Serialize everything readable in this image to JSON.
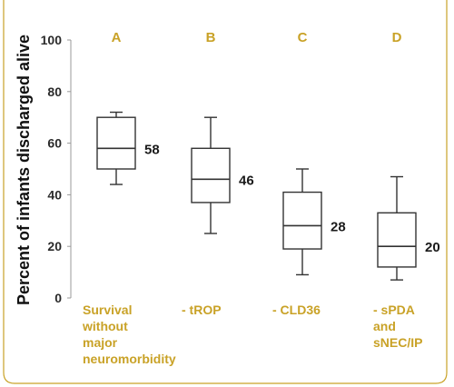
{
  "colors": {
    "accent": "#c9a227",
    "frame": "#c9a227",
    "box_stroke": "#333333",
    "axis": "#999999"
  },
  "chart_data": {
    "type": "box",
    "ylabel": "Percent of infants discharged alive",
    "xlabel": "",
    "ylim": [
      0,
      100
    ],
    "yticks": [
      0,
      20,
      40,
      60,
      80,
      100
    ],
    "grid": false,
    "categories": [
      "A",
      "B",
      "C",
      "D"
    ],
    "captions": [
      [
        "Survival",
        "without",
        "major",
        "neuromorbidity"
      ],
      [
        "- tROP"
      ],
      [
        "- CLD36"
      ],
      [
        "- sPDA",
        "and",
        "sNEC/IP"
      ]
    ],
    "boxes": [
      {
        "category": "A",
        "min": 44,
        "q1": 50,
        "median": 58,
        "q3": 70,
        "max": 72,
        "median_label": "58"
      },
      {
        "category": "B",
        "min": 25,
        "q1": 37,
        "median": 46,
        "q3": 58,
        "max": 70,
        "median_label": "46"
      },
      {
        "category": "C",
        "min": 9,
        "q1": 19,
        "median": 28,
        "q3": 41,
        "max": 50,
        "median_label": "28"
      },
      {
        "category": "D",
        "min": 7,
        "q1": 12,
        "median": 20,
        "q3": 33,
        "max": 47,
        "median_label": "20"
      }
    ]
  }
}
